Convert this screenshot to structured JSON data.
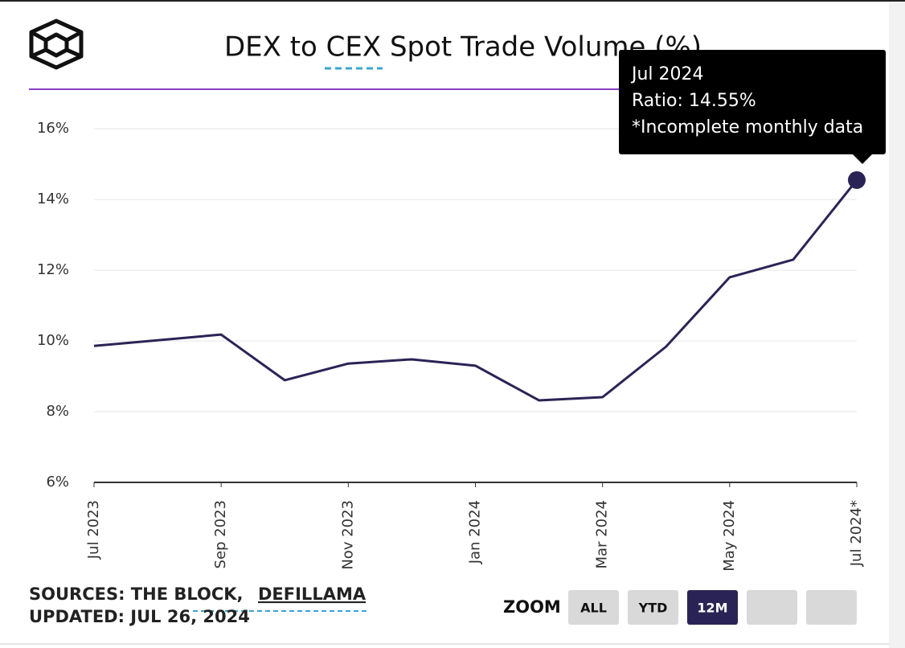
{
  "chart_data": {
    "type": "line",
    "title": "DEX to CEX Spot Trade Volume (%)",
    "categories": [
      "Jul 2023",
      null,
      "Sep 2023",
      null,
      "Nov 2023",
      null,
      "Jan 2024",
      null,
      "Mar 2024",
      null,
      "May 2024",
      null,
      "Jul 2024*"
    ],
    "series": [
      {
        "name": "Ratio",
        "color": "#2a2456",
        "values": [
          9.86,
          10.02,
          10.18,
          8.89,
          9.36,
          9.48,
          9.3,
          8.32,
          8.41,
          9.84,
          11.8,
          12.3,
          14.55
        ]
      }
    ],
    "ylim": [
      6,
      16.3
    ],
    "yticks": [
      {
        "value": 6,
        "label": "6%"
      },
      {
        "value": 8,
        "label": "8%"
      },
      {
        "value": 10,
        "label": "10%"
      },
      {
        "value": 12,
        "label": "12%"
      },
      {
        "value": 14,
        "label": "14%"
      },
      {
        "value": 16,
        "label": "16%"
      }
    ],
    "grid": true,
    "tooltip": {
      "title": "Jul 2024",
      "lines": [
        "Ratio: 14.55%",
        "*Incomplete monthly data"
      ]
    }
  },
  "footer": {
    "sources_label": "SOURCES: THE BLOCK,",
    "sources_link": "DEFILLAMA",
    "updated": "UPDATED: JUL 26, 2024"
  },
  "zoom": {
    "label": "ZOOM",
    "buttons": [
      "ALL",
      "YTD",
      "12M"
    ]
  }
}
